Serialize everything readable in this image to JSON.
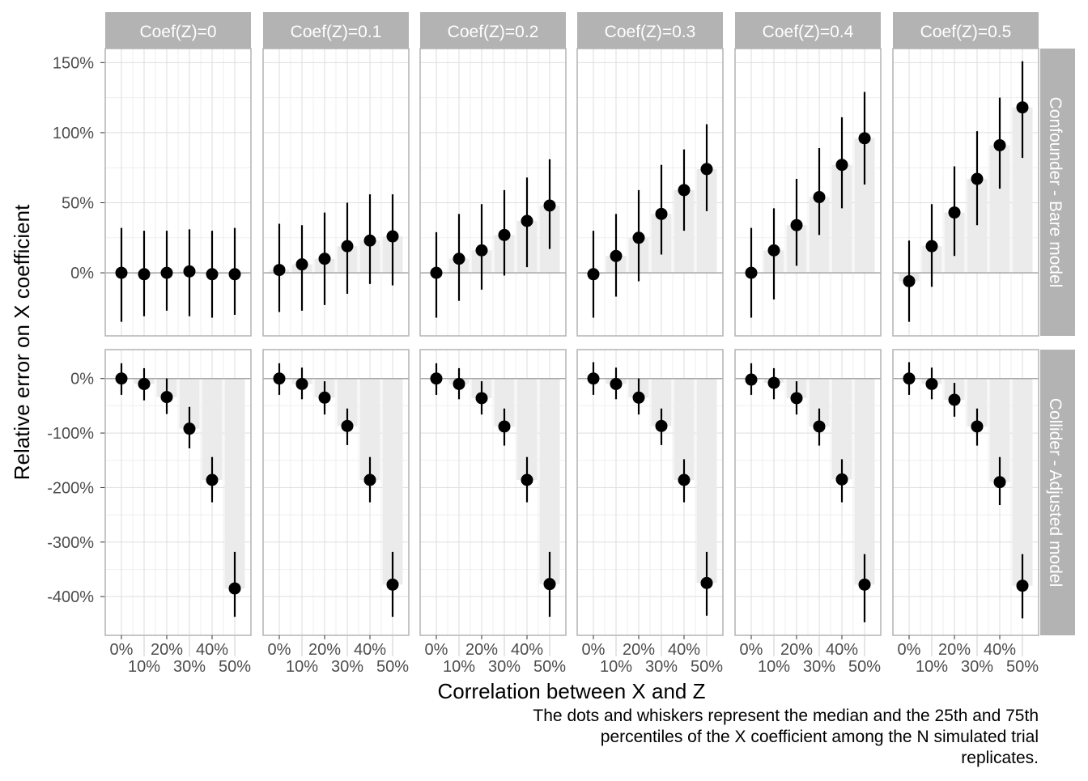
{
  "chart_data": {
    "type": "scatter",
    "subtype": "faceted point-range with bars",
    "xlabel": "Correlation between X and Z",
    "ylabel": "Relative error on X coefficient",
    "caption": [
      "The dots and whiskers represent the median and the 25th and 75th",
      "percentiles of the X coefficient among the N simulated trial",
      "replicates."
    ],
    "x_ticks": [
      "0%",
      "10%",
      "20%",
      "30%",
      "40%",
      "50%"
    ],
    "column_facets": [
      "Coef(Z)=0",
      "Coef(Z)=0.1",
      "Coef(Z)=0.2",
      "Coef(Z)=0.3",
      "Coef(Z)=0.4",
      "Coef(Z)=0.5"
    ],
    "row_facets": [
      {
        "label": "Confounder - Bare model",
        "ylim": [
          -45,
          160
        ],
        "y_ticks": [
          0,
          50,
          100,
          150
        ],
        "y_tick_labels": [
          "0%",
          "50%",
          "100%",
          "150%"
        ],
        "panels": [
          {
            "median": [
              0,
              -1,
              0,
              1,
              -1,
              -1
            ],
            "p25": [
              -35,
              -31,
              -27,
              -31,
              -32,
              -30
            ],
            "p75": [
              32,
              30,
              30,
              31,
              30,
              32
            ]
          },
          {
            "median": [
              2,
              6,
              10,
              19,
              23,
              26
            ],
            "p25": [
              -28,
              -27,
              -23,
              -15,
              -8,
              -9
            ],
            "p75": [
              35,
              34,
              43,
              50,
              56,
              56
            ]
          },
          {
            "median": [
              0,
              10,
              16,
              27,
              37,
              48
            ],
            "p25": [
              -32,
              -20,
              -12,
              -2,
              4,
              17
            ],
            "p75": [
              29,
              42,
              49,
              59,
              68,
              81
            ]
          },
          {
            "median": [
              -1,
              12,
              25,
              42,
              59,
              74
            ],
            "p25": [
              -32,
              -17,
              -6,
              13,
              30,
              44
            ],
            "p75": [
              30,
              42,
              59,
              77,
              88,
              106
            ]
          },
          {
            "median": [
              0,
              16,
              34,
              54,
              77,
              96
            ],
            "p25": [
              -32,
              -19,
              5,
              27,
              46,
              63
            ],
            "p75": [
              32,
              46,
              67,
              89,
              111,
              129
            ]
          },
          {
            "median": [
              -6,
              19,
              43,
              67,
              91,
              118
            ],
            "p25": [
              -35,
              -10,
              12,
              34,
              60,
              82
            ],
            "p75": [
              23,
              49,
              76,
              101,
              125,
              151
            ]
          }
        ]
      },
      {
        "label": "Collider - Adjusted model",
        "ylim": [
          -471,
          53
        ],
        "y_ticks": [
          0,
          -100,
          -200,
          -300,
          -400
        ],
        "y_tick_labels": [
          "0%",
          "-100%",
          "-200%",
          "-300%",
          "-400%"
        ],
        "panels": [
          {
            "median": [
              0,
              -10,
              -34,
              -92,
              -186,
              -385
            ],
            "p25": [
              -30,
              -40,
              -65,
              -128,
              -227,
              -437
            ],
            "p75": [
              28,
              19,
              0,
              -52,
              -144,
              -318
            ]
          },
          {
            "median": [
              0,
              -10,
              -35,
              -87,
              -186,
              -378
            ],
            "p25": [
              -30,
              -38,
              -66,
              -122,
              -227,
              -437
            ],
            "p75": [
              28,
              20,
              -5,
              -55,
              -144,
              -318
            ]
          },
          {
            "median": [
              0,
              -10,
              -36,
              -88,
              -186,
              -377
            ],
            "p25": [
              -30,
              -38,
              -66,
              -123,
              -227,
              -437
            ],
            "p75": [
              28,
              19,
              -5,
              -55,
              -144,
              -318
            ]
          },
          {
            "median": [
              0,
              -10,
              -35,
              -87,
              -186,
              -375
            ],
            "p25": [
              -30,
              -38,
              -66,
              -122,
              -227,
              -435
            ],
            "p75": [
              30,
              20,
              0,
              -55,
              -148,
              -318
            ]
          },
          {
            "median": [
              -2,
              -8,
              -36,
              -88,
              -185,
              -378
            ],
            "p25": [
              -30,
              -38,
              -66,
              -123,
              -227,
              -447
            ],
            "p75": [
              28,
              19,
              -5,
              -55,
              -148,
              -322
            ]
          },
          {
            "median": [
              0,
              -10,
              -39,
              -88,
              -190,
              -380
            ],
            "p25": [
              -30,
              -38,
              -70,
              -123,
              -232,
              -440
            ],
            "p75": [
              30,
              20,
              -8,
              -55,
              -144,
              -322
            ]
          }
        ]
      }
    ],
    "colors": {
      "strip_bg": "#b3b3b3",
      "strip_text": "#ffffff",
      "bar": "#ebebeb",
      "grid": "#dedede",
      "point": "#000000",
      "border": "#b3b3b3"
    }
  }
}
